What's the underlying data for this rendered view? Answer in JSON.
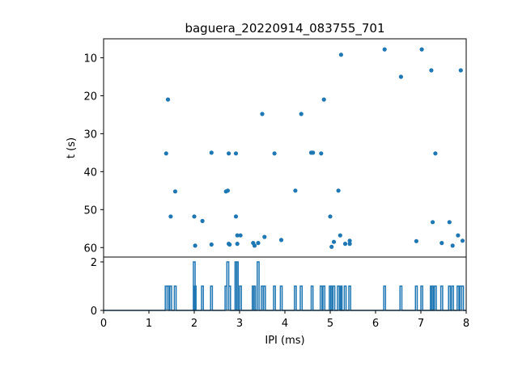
{
  "chart_data": [
    {
      "type": "scatter",
      "title": "baguera_20220914_083755_701",
      "xlabel": "",
      "ylabel": "t (s)",
      "xlim": [
        0,
        8
      ],
      "ylim": [
        62.5,
        5
      ],
      "y_inverted": true,
      "yticks": [
        10,
        20,
        30,
        40,
        50,
        60
      ],
      "grid": false,
      "color": "#1f77b4",
      "points": [
        [
          1.42,
          21
        ],
        [
          1.38,
          35.2
        ],
        [
          1.48,
          51.8
        ],
        [
          1.58,
          45.2
        ],
        [
          2.0,
          51.8
        ],
        [
          2.02,
          59.5
        ],
        [
          2.18,
          53
        ],
        [
          2.38,
          35
        ],
        [
          2.38,
          59.2
        ],
        [
          2.7,
          45.2
        ],
        [
          2.74,
          45
        ],
        [
          2.76,
          35.2
        ],
        [
          2.78,
          59.2
        ],
        [
          2.76,
          59.0
        ],
        [
          2.92,
          35.2
        ],
        [
          2.92,
          51.8
        ],
        [
          2.95,
          56.8
        ],
        [
          2.95,
          59.0
        ],
        [
          3.02,
          56.8
        ],
        [
          3.3,
          58.8
        ],
        [
          3.33,
          59.5
        ],
        [
          3.41,
          58.8
        ],
        [
          3.5,
          24.8
        ],
        [
          3.55,
          57.2
        ],
        [
          3.77,
          35.2
        ],
        [
          3.92,
          58.0
        ],
        [
          4.23,
          45.0
        ],
        [
          4.36,
          24.8
        ],
        [
          4.58,
          35.0
        ],
        [
          4.62,
          35.0
        ],
        [
          4.8,
          35.2
        ],
        [
          4.86,
          21
        ],
        [
          5.0,
          51.8
        ],
        [
          5.03,
          59.8
        ],
        [
          5.08,
          58.5
        ],
        [
          5.18,
          45.0
        ],
        [
          5.22,
          56.8
        ],
        [
          5.24,
          9.2
        ],
        [
          5.33,
          59.0
        ],
        [
          5.43,
          58.2
        ],
        [
          5.43,
          59.0
        ],
        [
          6.2,
          7.8
        ],
        [
          6.56,
          15.0
        ],
        [
          6.9,
          58.3
        ],
        [
          7.02,
          7.8
        ],
        [
          7.23,
          13.3
        ],
        [
          7.26,
          53.3
        ],
        [
          7.32,
          35.2
        ],
        [
          7.46,
          58.8
        ],
        [
          7.63,
          53.3
        ],
        [
          7.7,
          59.5
        ],
        [
          7.82,
          56.8
        ],
        [
          7.88,
          13.3
        ],
        [
          7.92,
          58.2
        ]
      ]
    },
    {
      "type": "line",
      "xlabel": "IPI (ms)",
      "ylabel": "",
      "xlim": [
        0,
        8
      ],
      "ylim": [
        0,
        2.2
      ],
      "xticks": [
        0,
        1,
        2,
        3,
        4,
        5,
        6,
        7,
        8
      ],
      "yticks": [
        0,
        2
      ],
      "grid": false,
      "color": "#1f77b4",
      "spikes": [
        [
          1.38,
          1
        ],
        [
          1.42,
          1
        ],
        [
          1.48,
          1
        ],
        [
          1.58,
          1
        ],
        [
          2.0,
          2
        ],
        [
          2.02,
          1
        ],
        [
          2.18,
          1
        ],
        [
          2.38,
          1
        ],
        [
          2.7,
          1
        ],
        [
          2.74,
          2
        ],
        [
          2.78,
          1
        ],
        [
          2.92,
          2
        ],
        [
          2.95,
          2
        ],
        [
          3.02,
          1
        ],
        [
          3.3,
          1
        ],
        [
          3.33,
          1
        ],
        [
          3.41,
          2
        ],
        [
          3.5,
          1
        ],
        [
          3.55,
          1
        ],
        [
          3.77,
          1
        ],
        [
          3.92,
          1
        ],
        [
          4.23,
          1
        ],
        [
          4.36,
          1
        ],
        [
          4.6,
          1
        ],
        [
          4.8,
          1
        ],
        [
          4.86,
          1
        ],
        [
          5.0,
          1
        ],
        [
          5.03,
          1
        ],
        [
          5.08,
          1
        ],
        [
          5.18,
          1
        ],
        [
          5.22,
          1
        ],
        [
          5.24,
          1
        ],
        [
          5.33,
          1
        ],
        [
          5.43,
          1
        ],
        [
          6.2,
          1
        ],
        [
          6.56,
          1
        ],
        [
          6.9,
          1
        ],
        [
          7.02,
          1
        ],
        [
          7.23,
          1
        ],
        [
          7.26,
          1
        ],
        [
          7.32,
          1
        ],
        [
          7.46,
          1
        ],
        [
          7.63,
          1
        ],
        [
          7.7,
          1
        ],
        [
          7.82,
          1
        ],
        [
          7.88,
          1
        ],
        [
          7.92,
          1
        ]
      ]
    }
  ]
}
